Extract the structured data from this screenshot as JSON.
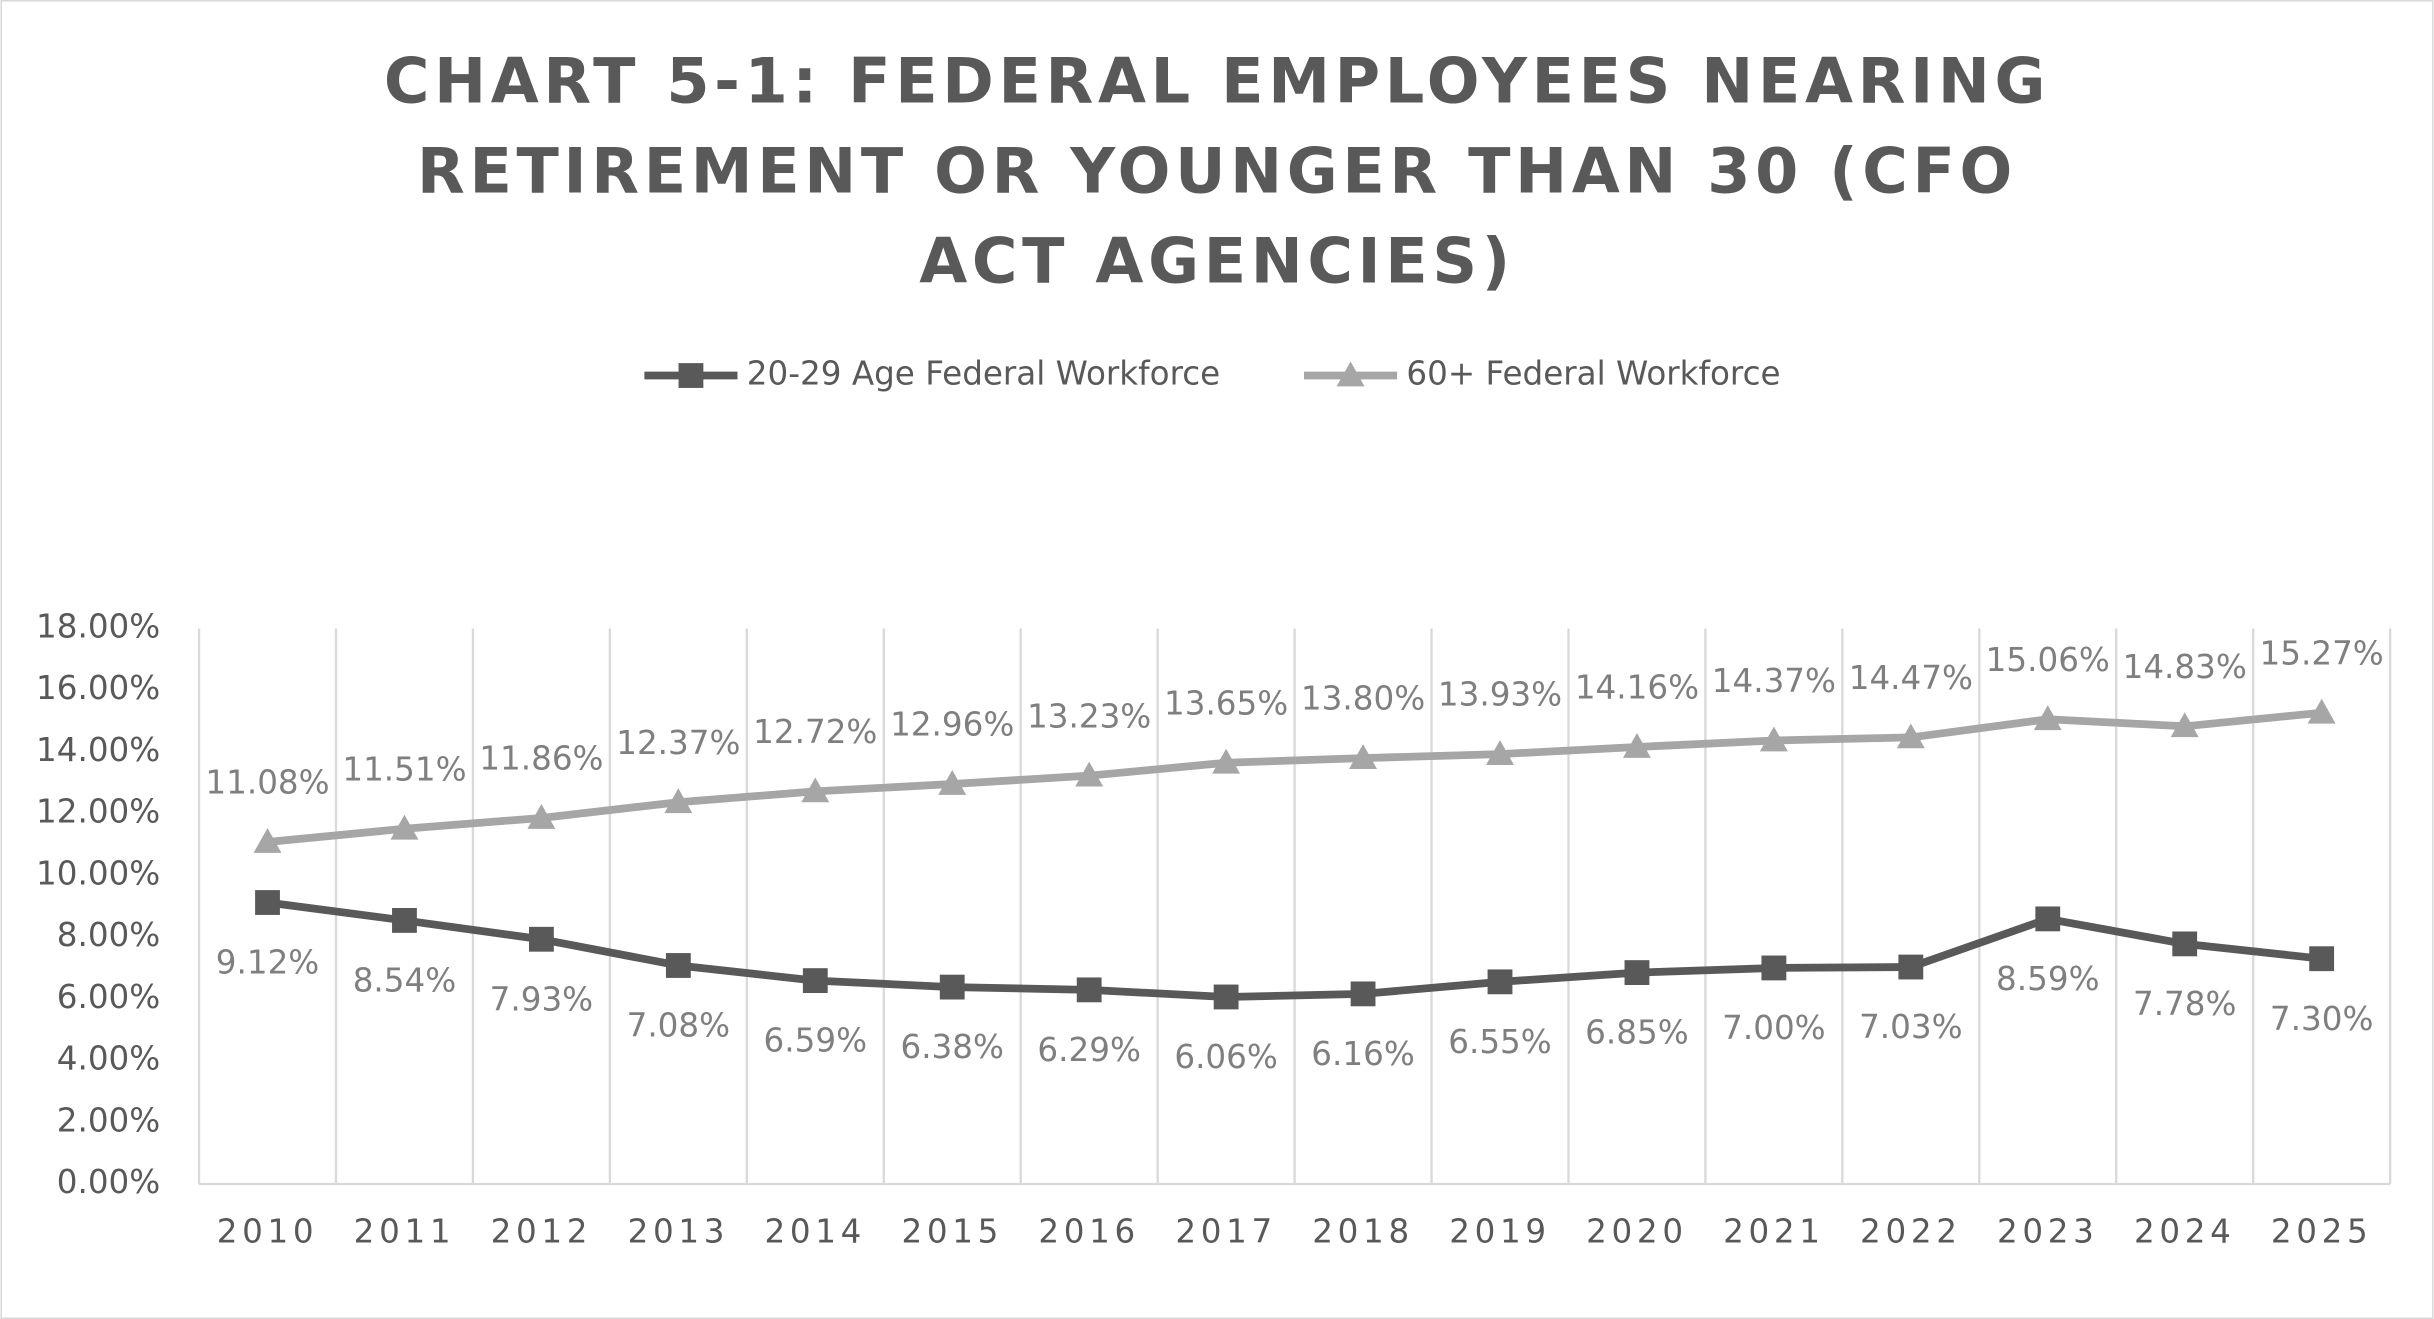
{
  "chart_data": {
    "type": "line",
    "title": "CHART 5-1: FEDERAL EMPLOYEES NEARING RETIREMENT OR YOUNGER THAN 30 (CFO ACT AGENCIES)",
    "categories": [
      "2010",
      "2011",
      "2012",
      "2013",
      "2014",
      "2015",
      "2016",
      "2017",
      "2018",
      "2019",
      "2020",
      "2021",
      "2022",
      "2023",
      "2024",
      "2025"
    ],
    "series": [
      {
        "name": "20-29 Age Federal Workforce",
        "color": "#595959",
        "marker": "square",
        "values": [
          9.12,
          8.54,
          7.93,
          7.08,
          6.59,
          6.38,
          6.29,
          6.06,
          6.16,
          6.55,
          6.85,
          7.0,
          7.03,
          8.59,
          7.78,
          7.3
        ],
        "value_labels": [
          "9.12%",
          "8.54%",
          "7.93%",
          "7.08%",
          "6.59%",
          "6.38%",
          "6.29%",
          "6.06%",
          "6.16%",
          "6.55%",
          "6.85%",
          "7.00%",
          "7.03%",
          "8.59%",
          "7.78%",
          "7.30%"
        ]
      },
      {
        "name": "60+ Federal Workforce",
        "color": "#a6a6a6",
        "marker": "triangle",
        "values": [
          11.08,
          11.51,
          11.86,
          12.37,
          12.72,
          12.96,
          13.23,
          13.65,
          13.8,
          13.93,
          14.16,
          14.37,
          14.47,
          15.06,
          14.83,
          15.27
        ],
        "value_labels": [
          "11.08%",
          "11.51%",
          "11.86%",
          "12.37%",
          "12.72%",
          "12.96%",
          "13.23%",
          "13.65%",
          "13.80%",
          "13.93%",
          "14.16%",
          "14.37%",
          "14.47%",
          "15.06%",
          "14.83%",
          "15.27%"
        ]
      }
    ],
    "ylim": [
      0,
      18
    ],
    "yticks": [
      {
        "value": 0,
        "label": "0.00%"
      },
      {
        "value": 2,
        "label": "2.00%"
      },
      {
        "value": 4,
        "label": "4.00%"
      },
      {
        "value": 6,
        "label": "6.00%"
      },
      {
        "value": 8,
        "label": "8.00%"
      },
      {
        "value": 10,
        "label": "10.00%"
      },
      {
        "value": 12,
        "label": "12.00%"
      },
      {
        "value": 14,
        "label": "14.00%"
      },
      {
        "value": 16,
        "label": "16.00%"
      },
      {
        "value": 18,
        "label": "18.00%"
      }
    ],
    "legend": "top"
  }
}
